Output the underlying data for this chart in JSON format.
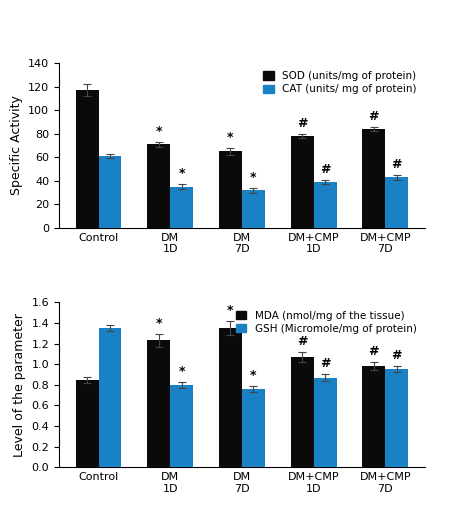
{
  "categories": [
    "Control",
    "DM\n1D",
    "DM\n7D",
    "DM+CMP\n1D",
    "DM+CMP\n7D"
  ],
  "top_chart": {
    "ylabel": "Specific Activity",
    "ylim": [
      0,
      140
    ],
    "yticks": [
      0,
      20,
      40,
      60,
      80,
      100,
      120,
      140
    ],
    "series1_label": "SOD (units/mg of protein)",
    "series2_label": "CAT (units/ mg of protein)",
    "series1_values": [
      117,
      71,
      65,
      78,
      84
    ],
    "series2_values": [
      61,
      35,
      32,
      39,
      43
    ],
    "series1_errors": [
      5,
      2,
      3,
      2,
      2
    ],
    "series2_errors": [
      2,
      2,
      2,
      2,
      2
    ],
    "series1_annotations": [
      "",
      "*",
      "*",
      "#",
      "#"
    ],
    "series2_annotations": [
      "",
      "*",
      "*",
      "#",
      "#"
    ]
  },
  "bottom_chart": {
    "ylabel": "Level of the parameter",
    "ylim": [
      0,
      1.6
    ],
    "yticks": [
      0,
      0.2,
      0.4,
      0.6,
      0.8,
      1.0,
      1.2,
      1.4,
      1.6
    ],
    "series1_label": "MDA (nmol/mg of the tissue)",
    "series2_label": "GSH (Micromole/mg of protein)",
    "series1_values": [
      0.85,
      1.23,
      1.35,
      1.07,
      0.98
    ],
    "series2_values": [
      1.35,
      0.8,
      0.76,
      0.87,
      0.95
    ],
    "series1_errors": [
      0.03,
      0.06,
      0.07,
      0.05,
      0.04
    ],
    "series2_errors": [
      0.03,
      0.03,
      0.03,
      0.03,
      0.03
    ],
    "series1_annotations": [
      "",
      "*",
      "*",
      "#",
      "#"
    ],
    "series2_annotations": [
      "",
      "*",
      "*",
      "#",
      "#"
    ]
  },
  "bar_color_black": "#0a0a0a",
  "bar_color_blue": "#1a82c4",
  "bar_width": 0.32,
  "capsize": 3,
  "error_color": "#444444",
  "annotation_fontsize": 9,
  "legend_fontsize": 7.5,
  "tick_fontsize": 8,
  "ylabel_fontsize": 9,
  "background_color": "#ffffff"
}
